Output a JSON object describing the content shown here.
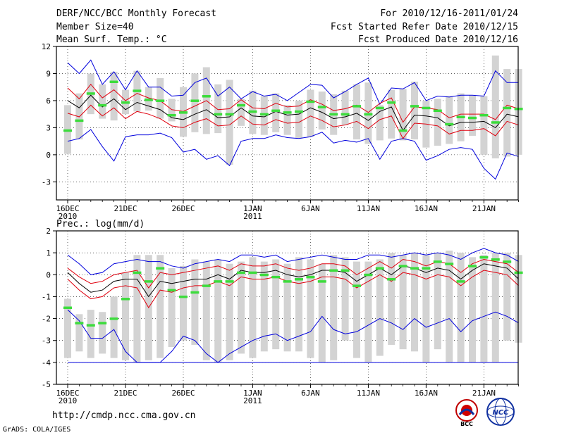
{
  "header": {
    "title": "DERF/NCC/BCC Monthly Forecast",
    "member_size": "Member Size=40",
    "top_variable": "Mean Surf. Temp.: °C",
    "period": "For 2010/12/16-2011/01/24",
    "refer_date": "Fcst Started Refer Date 2010/12/15",
    "produced_date": "Fcst Produced Date 2010/12/16"
  },
  "footer": {
    "url": "http://cmdp.ncc.cma.gov.cn",
    "credit": "GrADS: COLA/IGES",
    "logo_left": "BCC",
    "logo_right": "NCC"
  },
  "colors": {
    "box": "#d3d3d3",
    "median": "#3cdc3c",
    "mean": "#000000",
    "spread": "#e0000e",
    "extreme": "#0000dd"
  },
  "chart_data": [
    {
      "type": "line",
      "title": "Mean Surf. Temp.: °C",
      "ylabel": "Mean Surf. Temp. (°C)",
      "ylim": [
        -5,
        12
      ],
      "yticks": [
        -3,
        0,
        3,
        6,
        9,
        12
      ],
      "xticks": [
        {
          "day": 1,
          "label": "16DEC",
          "sub": "2010"
        },
        {
          "day": 6,
          "label": "21DEC",
          "sub": ""
        },
        {
          "day": 11,
          "label": "26DEC",
          "sub": ""
        },
        {
          "day": 17,
          "label": "1JAN",
          "sub": "2011"
        },
        {
          "day": 22,
          "label": "6JAN",
          "sub": ""
        },
        {
          "day": 27,
          "label": "11JAN",
          "sub": ""
        },
        {
          "day": 32,
          "label": "16JAN",
          "sub": ""
        },
        {
          "day": 37,
          "label": "21JAN",
          "sub": ""
        }
      ],
      "days": [
        1,
        2,
        3,
        4,
        5,
        6,
        7,
        8,
        9,
        10,
        11,
        12,
        13,
        14,
        15,
        16,
        17,
        18,
        19,
        20,
        21,
        22,
        23,
        24,
        25,
        26,
        27,
        28,
        29,
        30,
        31,
        32,
        33,
        34,
        35,
        36,
        37,
        38,
        39,
        40
      ],
      "series": [
        {
          "name": "box_high",
          "values": [
            5.5,
            6.8,
            9.0,
            7.8,
            9.2,
            7.2,
            9.3,
            7.5,
            8.5,
            6.2,
            7.5,
            9.0,
            9.7,
            7.8,
            8.3,
            6.2,
            7.1,
            6.5,
            6.8,
            5.5,
            6.0,
            7.2,
            7.0,
            6.7,
            7.1,
            7.8,
            8.0,
            5.5,
            7.2,
            7.3,
            8.1,
            6.0,
            6.2,
            6.5,
            6.8,
            6.6,
            6.5,
            11.0,
            9.5,
            9.5
          ]
        },
        {
          "name": "box_low",
          "values": [
            0.1,
            1.7,
            4.5,
            4.0,
            3.8,
            4.5,
            4.8,
            4.9,
            4.0,
            3.7,
            2.0,
            2.5,
            2.3,
            2.4,
            -1.1,
            3.2,
            2.3,
            2.2,
            2.5,
            2.2,
            1.8,
            2.0,
            2.8,
            2.2,
            3.3,
            1.7,
            1.2,
            1.6,
            1.8,
            1.6,
            1.7,
            0.8,
            1.0,
            1.2,
            1.5,
            2.1,
            0.0,
            -0.4,
            -0.2,
            0.0
          ]
        },
        {
          "name": "median",
          "values": [
            2.7,
            3.8,
            6.8,
            5.5,
            8.1,
            5.8,
            7.1,
            6.1,
            6.0,
            4.4,
            4.7,
            6.0,
            6.5,
            4.5,
            4.5,
            5.5,
            4.8,
            4.5,
            4.9,
            4.7,
            4.8,
            5.9,
            5.3,
            4.5,
            4.5,
            5.4,
            4.5,
            5.2,
            5.8,
            2.7,
            5.4,
            5.2,
            4.9,
            3.4,
            4.2,
            4.1,
            4.4,
            3.6,
            5.2,
            5.1
          ]
        },
        {
          "name": "mean",
          "values": [
            6.0,
            5.2,
            6.6,
            5.3,
            6.2,
            5.0,
            5.8,
            5.4,
            5.0,
            4.1,
            3.9,
            4.5,
            5.0,
            4.1,
            4.2,
            5.2,
            4.3,
            4.2,
            4.8,
            4.4,
            4.5,
            5.2,
            4.7,
            4.0,
            4.2,
            4.6,
            3.8,
            4.8,
            5.3,
            2.7,
            4.4,
            4.3,
            4.1,
            3.2,
            3.6,
            3.6,
            3.7,
            3.0,
            4.5,
            4.2
          ]
        },
        {
          "name": "spread_high",
          "values": [
            7.4,
            6.2,
            7.8,
            6.3,
            7.2,
            6.0,
            6.8,
            6.3,
            6.0,
            5.0,
            4.8,
            5.4,
            6.0,
            5.0,
            5.1,
            6.1,
            5.2,
            5.1,
            5.7,
            5.3,
            5.4,
            6.1,
            5.6,
            4.9,
            5.1,
            5.5,
            4.7,
            5.7,
            6.3,
            3.6,
            5.3,
            5.2,
            5.0,
            4.1,
            4.5,
            4.5,
            4.5,
            3.9,
            5.5,
            5.1
          ]
        },
        {
          "name": "spread_low",
          "values": [
            4.6,
            4.2,
            5.5,
            4.3,
            5.2,
            4.0,
            4.8,
            4.5,
            4.0,
            3.2,
            3.0,
            3.6,
            4.0,
            3.2,
            3.3,
            4.3,
            3.4,
            3.3,
            3.9,
            3.5,
            3.6,
            4.3,
            3.8,
            3.1,
            3.3,
            3.7,
            2.9,
            3.9,
            4.3,
            1.8,
            3.5,
            3.4,
            3.2,
            2.3,
            2.7,
            2.7,
            2.9,
            2.1,
            3.7,
            3.3
          ]
        },
        {
          "name": "max",
          "values": [
            10.2,
            9.0,
            10.5,
            7.8,
            9.2,
            7.2,
            9.3,
            7.5,
            7.5,
            6.5,
            6.6,
            8.0,
            8.5,
            6.5,
            7.5,
            6.2,
            7.0,
            6.5,
            6.7,
            6.0,
            6.9,
            7.8,
            7.7,
            6.3,
            7.0,
            7.8,
            8.5,
            5.6,
            7.4,
            7.3,
            8.0,
            6.0,
            6.5,
            6.4,
            6.6,
            6.6,
            6.5,
            9.3,
            8.0,
            8.0
          ]
        },
        {
          "name": "min",
          "values": [
            1.5,
            1.8,
            2.8,
            0.9,
            -0.7,
            2.0,
            2.2,
            2.2,
            2.4,
            1.9,
            0.3,
            0.6,
            -0.5,
            -0.1,
            -1.2,
            1.5,
            1.8,
            1.8,
            2.2,
            1.9,
            1.8,
            2.0,
            2.5,
            1.3,
            1.6,
            1.4,
            1.8,
            -0.5,
            1.5,
            1.8,
            1.5,
            -0.6,
            -0.1,
            0.6,
            0.8,
            0.6,
            -1.5,
            -2.7,
            0.2,
            -0.2
          ]
        }
      ]
    },
    {
      "type": "line",
      "title": "Prec.: log(mm/d)",
      "ylabel": "Prec. log(mm/d)",
      "ylim": [
        -5,
        2
      ],
      "yticks": [
        -5,
        -4,
        -3,
        -2,
        -1,
        0,
        1,
        2
      ],
      "xticks": [
        {
          "day": 1,
          "label": "16DEC",
          "sub": "2010"
        },
        {
          "day": 6,
          "label": "21DEC",
          "sub": ""
        },
        {
          "day": 11,
          "label": "26DEC",
          "sub": ""
        },
        {
          "day": 17,
          "label": "1JAN",
          "sub": "2011"
        },
        {
          "day": 22,
          "label": "6JAN",
          "sub": ""
        },
        {
          "day": 27,
          "label": "11JAN",
          "sub": ""
        },
        {
          "day": 32,
          "label": "16JAN",
          "sub": ""
        },
        {
          "day": 37,
          "label": "21JAN",
          "sub": ""
        }
      ],
      "days": [
        1,
        2,
        3,
        4,
        5,
        6,
        7,
        8,
        9,
        10,
        11,
        12,
        13,
        14,
        15,
        16,
        17,
        18,
        19,
        20,
        21,
        22,
        23,
        24,
        25,
        26,
        27,
        28,
        29,
        30,
        31,
        32,
        33,
        34,
        35,
        36,
        37,
        38,
        39,
        40
      ],
      "series": [
        {
          "name": "box_high",
          "values": [
            -1.1,
            -1.8,
            -1.6,
            -1.7,
            -1.0,
            0.1,
            0.9,
            0.9,
            0.9,
            0.3,
            0.4,
            0.7,
            0.6,
            0.7,
            0.5,
            0.6,
            0.8,
            0.6,
            0.7,
            0.5,
            0.8,
            0.7,
            0.5,
            0.9,
            0.8,
            0.6,
            0.6,
            0.7,
            1.0,
            0.9,
            1.0,
            0.9,
            1.0,
            1.1,
            1.0,
            0.8,
            0.9,
            1.0,
            1.0,
            0.9
          ]
        },
        {
          "name": "box_low",
          "values": [
            -3.8,
            -3.5,
            -3.8,
            -3.6,
            -3.8,
            -3.9,
            -4.0,
            -3.9,
            -3.8,
            -3.3,
            -3.0,
            -3.2,
            -3.9,
            -4.0,
            -3.9,
            -3.6,
            -3.8,
            -3.5,
            -3.4,
            -3.5,
            -3.5,
            -3.8,
            -4.0,
            -3.9,
            -3.0,
            -3.8,
            -4.0,
            -3.7,
            -3.2,
            -3.4,
            -3.5,
            -4.0,
            -3.4,
            -4.0,
            -4.0,
            -4.0,
            -4.0,
            -4.0,
            -3.0,
            -3.1
          ]
        },
        {
          "name": "median",
          "values": [
            -1.5,
            -2.2,
            -2.3,
            -2.2,
            -2.0,
            -1.1,
            0.1,
            -0.3,
            0.3,
            -0.7,
            -1.0,
            -0.8,
            -0.5,
            -0.3,
            -0.3,
            0.1,
            0.1,
            0.0,
            -0.1,
            -0.3,
            -0.2,
            -0.1,
            -0.3,
            0.2,
            0.2,
            -0.5,
            0.0,
            0.3,
            -0.2,
            0.4,
            0.3,
            0.3,
            0.6,
            0.5,
            -0.3,
            0.4,
            0.8,
            0.7,
            0.6,
            0.1
          ]
        },
        {
          "name": "mean",
          "values": [
            0.1,
            -0.4,
            -0.8,
            -0.7,
            -0.3,
            -0.2,
            -0.2,
            -1.0,
            -0.3,
            -0.4,
            -0.3,
            -0.2,
            -0.2,
            0.0,
            -0.2,
            0.2,
            0.1,
            0.1,
            0.2,
            0.0,
            -0.1,
            0.0,
            0.2,
            0.2,
            0.1,
            -0.3,
            0.0,
            0.3,
            0.0,
            0.4,
            0.3,
            0.1,
            0.3,
            0.2,
            -0.2,
            0.2,
            0.5,
            0.4,
            0.3,
            -0.2
          ]
        },
        {
          "name": "spread_high",
          "values": [
            0.3,
            -0.1,
            -0.4,
            -0.3,
            0.0,
            0.1,
            0.2,
            -0.6,
            0.1,
            0.0,
            0.1,
            0.2,
            0.3,
            0.4,
            0.2,
            0.5,
            0.4,
            0.4,
            0.5,
            0.3,
            0.2,
            0.3,
            0.5,
            0.5,
            0.4,
            0.0,
            0.3,
            0.6,
            0.3,
            0.7,
            0.6,
            0.4,
            0.6,
            0.5,
            0.1,
            0.5,
            0.7,
            0.6,
            0.5,
            0.1
          ]
        },
        {
          "name": "spread_low",
          "values": [
            -0.2,
            -0.7,
            -1.1,
            -1.0,
            -0.6,
            -0.5,
            -0.6,
            -1.5,
            -0.7,
            -0.8,
            -0.6,
            -0.5,
            -0.5,
            -0.3,
            -0.5,
            -0.1,
            -0.2,
            -0.2,
            -0.1,
            -0.3,
            -0.4,
            -0.3,
            -0.1,
            -0.1,
            -0.2,
            -0.6,
            -0.3,
            0.0,
            -0.3,
            0.1,
            0.0,
            -0.2,
            0.0,
            -0.1,
            -0.5,
            -0.1,
            0.2,
            0.1,
            0.0,
            -0.5
          ]
        },
        {
          "name": "max",
          "values": [
            0.9,
            0.5,
            0.0,
            0.1,
            0.5,
            0.6,
            0.7,
            0.6,
            0.6,
            0.4,
            0.3,
            0.5,
            0.6,
            0.7,
            0.6,
            0.9,
            0.9,
            0.8,
            0.9,
            0.6,
            0.7,
            0.8,
            0.9,
            0.8,
            0.7,
            0.7,
            0.9,
            0.9,
            0.8,
            0.9,
            1.0,
            0.9,
            1.0,
            0.9,
            0.7,
            1.0,
            1.2,
            1.0,
            0.9,
            0.6
          ]
        },
        {
          "name": "min",
          "values": [
            -1.6,
            -2.1,
            -2.9,
            -2.9,
            -2.5,
            -3.5,
            -4.0,
            -4.0,
            -4.0,
            -3.5,
            -2.8,
            -3.0,
            -3.6,
            -4.0,
            -3.6,
            -3.3,
            -3.0,
            -2.8,
            -2.7,
            -3.0,
            -2.8,
            -2.6,
            -1.9,
            -2.5,
            -2.7,
            -2.6,
            -2.3,
            -2.0,
            -2.2,
            -2.5,
            -2.0,
            -2.4,
            -2.2,
            -2.0,
            -2.6,
            -2.1,
            -1.9,
            -1.7,
            -1.9,
            -2.2
          ]
        },
        {
          "name": "floor",
          "values": [
            -4.0,
            -4.0,
            -4.0,
            -4.0,
            -4.0,
            -4.0,
            -4.0,
            -4.0,
            -4.0,
            -4.0,
            -4.0,
            -4.0,
            -4.0,
            -4.0,
            -4.0,
            -4.0,
            -4.0,
            -4.0,
            -4.0,
            -4.0,
            -4.0,
            -4.0,
            -4.0,
            -4.0,
            -4.0,
            -4.0,
            -4.0,
            -4.0,
            -4.0,
            -4.0,
            -4.0,
            -4.0,
            -4.0,
            -4.0,
            -4.0,
            -4.0,
            -4.0,
            -4.0,
            -4.0,
            -4.0
          ]
        }
      ]
    }
  ]
}
